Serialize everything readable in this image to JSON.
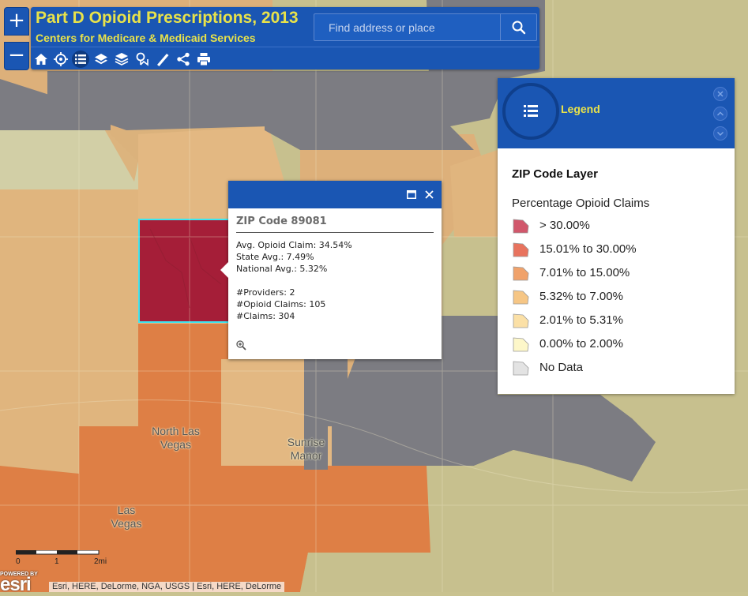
{
  "app": {
    "title": "Part D Opioid Prescriptions, 2013",
    "subtitle": "Centers for Medicare & Medicaid Services"
  },
  "search": {
    "placeholder": "Find address or place"
  },
  "zoom": {
    "in_label": "+",
    "out_label": "−"
  },
  "toolbar": {
    "tools": [
      "home-icon",
      "locate-icon",
      "legend-list-icon",
      "layers-icon",
      "basemap-icon",
      "bookmark-icon",
      "measure-icon",
      "share-icon",
      "print-icon"
    ],
    "active": "legend-list-icon"
  },
  "popup": {
    "title": "ZIP Code 89081",
    "lines": [
      "Avg. Opioid Claim: 34.54%",
      "State Avg.: 7.49%",
      "National Avg.: 5.32%",
      "#Providers: 2",
      "#Opioid Claims: 105",
      "#Claims: 304"
    ]
  },
  "legend": {
    "header": "Legend",
    "layer_name": "ZIP Code Layer",
    "field_name": "Percentage Opioid Claims",
    "classes": [
      {
        "label": "> 30.00%",
        "color": "#d1576b"
      },
      {
        "label": "15.01% to 30.00%",
        "color": "#e8735e"
      },
      {
        "label": "7.01% to 15.00%",
        "color": "#f0a26b"
      },
      {
        "label": "5.32% to 7.00%",
        "color": "#f6c685"
      },
      {
        "label": "2.01% to 5.31%",
        "color": "#fbe0a6"
      },
      {
        "label": "0.00% to 2.00%",
        "color": "#fdf7c9"
      },
      {
        "label": "No Data",
        "color": "#e3e3e3"
      }
    ]
  },
  "map": {
    "places": [
      {
        "name": "North Las\nVegas"
      },
      {
        "name": "Sunrise\nManor"
      },
      {
        "name": "Las\nVegas"
      }
    ],
    "scale_labels": [
      "0",
      "1",
      "2mi"
    ],
    "attribution": "Esri, HERE, DeLorme, NGA, USGS | Esri, HERE, DeLorme",
    "logo_text": "POWERED BY",
    "logo_brand": "esri"
  },
  "colors": {
    "accent": "#1a56b3",
    "title_text": "#e8e24a",
    "selected_zip": "#a51e38",
    "selected_outline": "#3ee6f0"
  }
}
